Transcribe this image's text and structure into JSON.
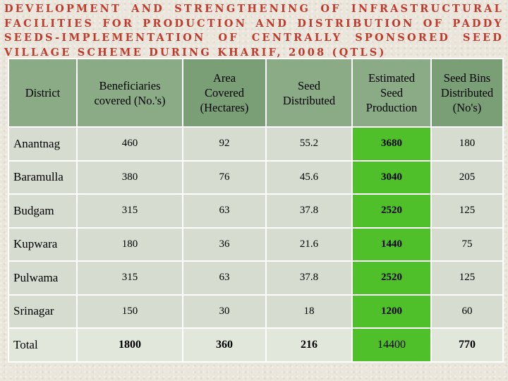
{
  "title": "DEVELOPMENT AND STRENGTHENING OF INFRASTRUCTURAL FACILITIES FOR PRODUCTION AND DISTRIBUTION OF PADDY SEEDS-IMPLEMENTATION OF CENTRALLY SPONSORED SEED VILLAGE SCHEME DURING KHARIF, 2008 (QTLS)",
  "headers": {
    "district": "District",
    "beneficiaries": [
      "Beneficiaries",
      "covered  (No.'s)"
    ],
    "area": [
      "Area",
      "Covered",
      "(Hectares)"
    ],
    "seed_distributed": [
      "Seed",
      "Distributed"
    ],
    "estimated": [
      "Estimated",
      "Seed",
      "Production"
    ],
    "bins": [
      "Seed Bins",
      "Distributed",
      "(No's)"
    ]
  },
  "rows": [
    {
      "district": "Anantnag",
      "beneficiaries": "460",
      "area": "92",
      "seed": "55.2",
      "estimated": "3680",
      "bins": "180"
    },
    {
      "district": "Baramulla",
      "beneficiaries": "380",
      "area": "76",
      "seed": "45.6",
      "estimated": "3040",
      "bins": "205"
    },
    {
      "district": "Budgam",
      "beneficiaries": "315",
      "area": "63",
      "seed": "37.8",
      "estimated": "2520",
      "bins": "125"
    },
    {
      "district": "Kupwara",
      "beneficiaries": "180",
      "area": "36",
      "seed": "21.6",
      "estimated": "1440",
      "bins": "75"
    },
    {
      "district": "Pulwama",
      "beneficiaries": "315",
      "area": "63",
      "seed": "37.8",
      "estimated": "2520",
      "bins": "125"
    },
    {
      "district": "Srinagar",
      "beneficiaries": "150",
      "area": "30",
      "seed": "18",
      "estimated": "1200",
      "bins": "60"
    }
  ],
  "total": {
    "district": "Total",
    "beneficiaries": "1800",
    "area": "360",
    "seed": "216",
    "estimated": "14400",
    "bins": "770"
  },
  "colors": {
    "title": "#c0392b",
    "header": "#8aab86",
    "cell": "#d6dcd0",
    "highlight": "#4fbf2a"
  }
}
